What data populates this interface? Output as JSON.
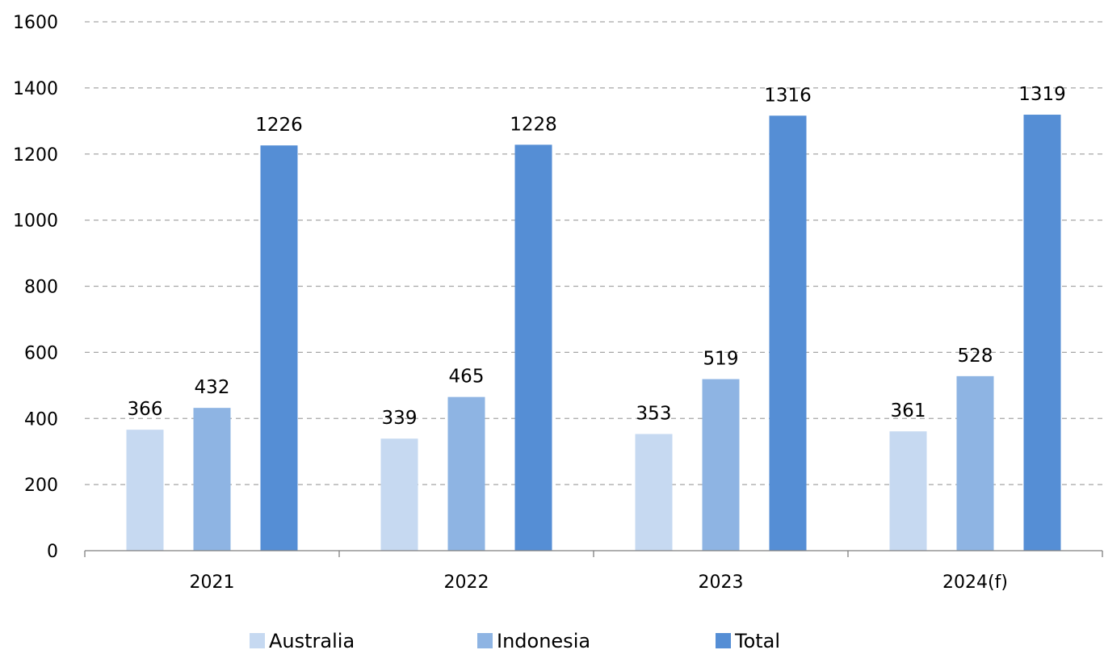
{
  "chart_data": {
    "type": "bar",
    "title": "",
    "xlabel": "",
    "ylabel": "",
    "categories": [
      "2021",
      "2022",
      "2023",
      "2024(f)"
    ],
    "series": [
      {
        "name": "Australia",
        "values": [
          366,
          339,
          353,
          361
        ],
        "color": "#c6d9f1"
      },
      {
        "name": "Indonesia",
        "values": [
          432,
          465,
          519,
          528
        ],
        "color": "#8eb4e3"
      },
      {
        "name": "Total",
        "values": [
          1226,
          1228,
          1316,
          1319
        ],
        "color": "#558ed5"
      }
    ],
    "ylim": [
      0,
      1600
    ],
    "yticks": [
      0,
      200,
      400,
      600,
      800,
      1000,
      1200,
      1400,
      1600
    ],
    "grid": true,
    "data_labels": true,
    "legend_position": "bottom"
  }
}
